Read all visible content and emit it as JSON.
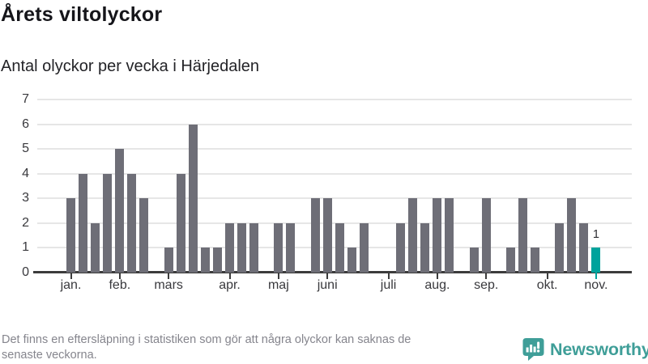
{
  "header": {
    "title": "Årets viltolyckor",
    "subtitle": "Antal olyckor per vecka i Härjedalen"
  },
  "footer": {
    "note_line1": "Det finns en eftersläpning i statistiken som gör att några olyckor kan saknas de",
    "note_line2": "senaste veckorna.",
    "brand": "Newsworthy"
  },
  "colors": {
    "bar": "#6e6e77",
    "highlight": "#00a39c",
    "axis": "#3c3c3c",
    "grid": "#e6e6e6",
    "label": "#39393d",
    "footnote": "#85858d",
    "brand_teal": "#3f9e98"
  },
  "chart_data": {
    "type": "bar",
    "title": "Årets viltolyckor",
    "subtitle": "Antal olyckor per vecka i Härjedalen",
    "x_unit": "vecka",
    "ylim": [
      0,
      7
    ],
    "yticks": [
      0,
      1,
      2,
      3,
      4,
      5,
      6,
      7
    ],
    "grid": "horizontal",
    "legend": "none",
    "values": [
      3,
      4,
      2,
      4,
      5,
      4,
      3,
      0,
      1,
      4,
      6,
      1,
      1,
      2,
      2,
      2,
      0,
      2,
      2,
      0,
      3,
      3,
      2,
      1,
      2,
      0,
      0,
      2,
      3,
      2,
      3,
      3,
      0,
      1,
      3,
      0,
      1,
      3,
      1,
      0,
      2,
      3,
      2,
      1
    ],
    "month_ticks": [
      {
        "label": "jan.",
        "week_index": 0
      },
      {
        "label": "feb.",
        "week_index": 4
      },
      {
        "label": "mars",
        "week_index": 8
      },
      {
        "label": "apr.",
        "week_index": 13
      },
      {
        "label": "maj",
        "week_index": 17
      },
      {
        "label": "juni",
        "week_index": 21
      },
      {
        "label": "juli",
        "week_index": 26
      },
      {
        "label": "aug.",
        "week_index": 30
      },
      {
        "label": "sep.",
        "week_index": 34
      },
      {
        "label": "okt.",
        "week_index": 39
      },
      {
        "label": "nov.",
        "week_index": 43
      }
    ],
    "highlight": {
      "index": 43,
      "label": "1"
    }
  }
}
